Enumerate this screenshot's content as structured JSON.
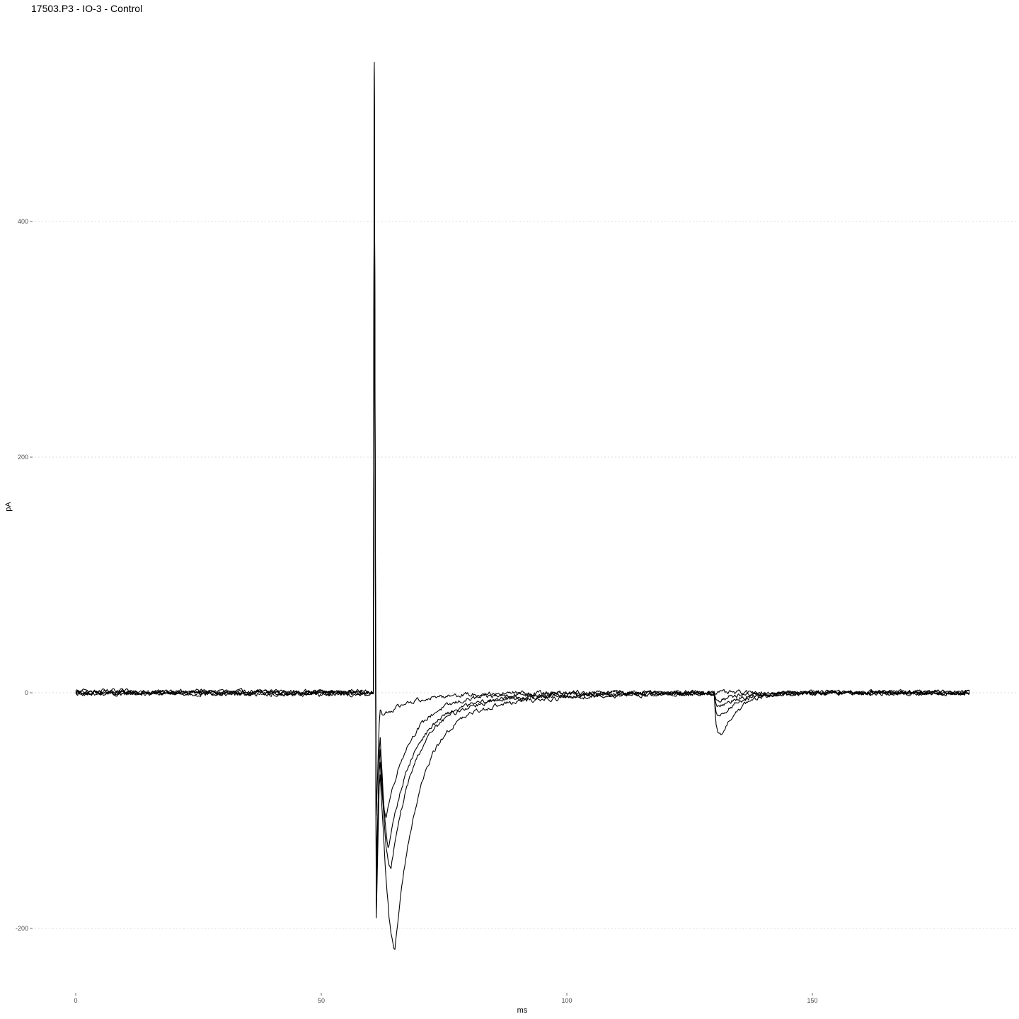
{
  "chart_data": {
    "type": "line",
    "title": "17503.P3 - IO-3 - Control",
    "xlabel": "ms",
    "ylabel": "pA",
    "xlim": [
      -13,
      192
    ],
    "ylim": [
      -245,
      535
    ],
    "xticks": [
      0,
      50,
      100,
      150
    ],
    "xtick_labels": [
      "0",
      "50",
      "100",
      "150"
    ],
    "yticks": [
      -200,
      0,
      200,
      400
    ],
    "ytick_labels": [
      "-200",
      "0",
      "200",
      "400"
    ],
    "grid": {
      "horizontal": true,
      "vertical": false
    },
    "legend": "none",
    "colors": {
      "line": "#000000",
      "grid": "#cfcfcf",
      "tick_text": "#4d4d4d"
    },
    "x_range": [
      0,
      182
    ],
    "stimulus_time": 60.8,
    "series": [
      {
        "baseline": 0.5,
        "noise": 1.6,
        "stim_peak": 535,
        "stim_trough": -195,
        "rebound": -40,
        "peak_time": 63.2,
        "peak": -105,
        "tail_amp": -20,
        "tail_tau": 10,
        "late_event": 0
      },
      {
        "baseline": -0.5,
        "noise": 1.6,
        "stim_peak": 532,
        "stim_trough": -180,
        "rebound": -30,
        "peak_time": 63.8,
        "peak": -130,
        "tail_amp": -25,
        "tail_tau": 14,
        "late_event": -10
      },
      {
        "baseline": 1.0,
        "noise": 1.6,
        "stim_peak": 530,
        "stim_trough": -150,
        "rebound": -55,
        "peak_time": 64.2,
        "peak": -150,
        "tail_amp": -22,
        "tail_tau": 16,
        "late_event": -18
      },
      {
        "baseline": 0.0,
        "noise": 1.6,
        "stim_peak": 528,
        "stim_trough": -200,
        "rebound": -60,
        "peak_time": 65.0,
        "peak": -218,
        "tail_amp": -28,
        "tail_tau": 18,
        "late_event": -32
      },
      {
        "baseline": -1.0,
        "noise": 1.6,
        "stim_peak": 525,
        "stim_trough": -110,
        "rebound": -15,
        "peak_time": 62.5,
        "peak": -20,
        "tail_amp": -10,
        "tail_tau": 8,
        "late_event": -5
      }
    ],
    "late_event_time": 131.5
  }
}
